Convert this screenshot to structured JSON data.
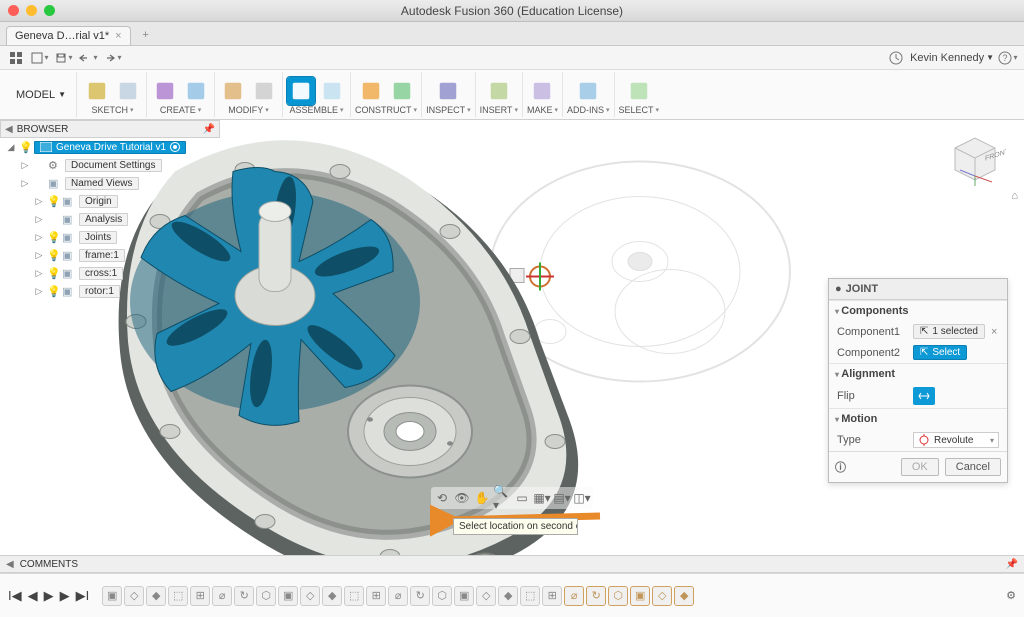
{
  "app_title": "Autodesk Fusion 360 (Education License)",
  "tab": {
    "name": "Geneva D…rial v1*",
    "closable": true
  },
  "user": {
    "name": "Kevin Kennedy"
  },
  "quickbar": {
    "clock_icon": "clock",
    "help_icon": "?"
  },
  "ribbon": {
    "workspace": "MODEL",
    "groups": [
      {
        "label": "SKETCH",
        "icons": [
          {
            "c": "#d8c060"
          },
          {
            "c": "#c2d3e0"
          }
        ]
      },
      {
        "label": "CREATE",
        "icons": [
          {
            "c": "#b58ad1"
          },
          {
            "c": "#9ac6e6"
          }
        ]
      },
      {
        "label": "MODIFY",
        "icons": [
          {
            "c": "#e0b880"
          },
          {
            "c": "#cfcfcf"
          }
        ]
      },
      {
        "label": "ASSEMBLE",
        "icons": [
          {
            "c": "#0896d3",
            "active": true
          },
          {
            "c": "#c4e1f0"
          }
        ]
      },
      {
        "label": "CONSTRUCT",
        "icons": [
          {
            "c": "#f0b05a"
          },
          {
            "c": "#8cd19a"
          }
        ]
      },
      {
        "label": "INSPECT",
        "icons": [
          {
            "c": "#9897cf"
          }
        ]
      },
      {
        "label": "INSERT",
        "icons": [
          {
            "c": "#bcd49a"
          }
        ]
      },
      {
        "label": "MAKE",
        "icons": [
          {
            "c": "#c5b9e0"
          }
        ]
      },
      {
        "label": "ADD-INS",
        "icons": [
          {
            "c": "#9fc9e6"
          }
        ]
      },
      {
        "label": "SELECT",
        "icons": [
          {
            "c": "#b7e0b0"
          }
        ]
      }
    ]
  },
  "browser": {
    "title": "BROWSER",
    "root": "Geneva Drive Tutorial v1",
    "items": [
      {
        "icon": "gear",
        "label": "Document Settings",
        "indent": 1,
        "tw": "▷"
      },
      {
        "icon": "folder",
        "label": "Named Views",
        "indent": 1,
        "tw": "▷"
      },
      {
        "icon": "folder",
        "label": "Origin",
        "indent": 2,
        "tw": "▷",
        "bulb": true
      },
      {
        "icon": "folder",
        "label": "Analysis",
        "indent": 2,
        "tw": "▷"
      },
      {
        "icon": "folder",
        "label": "Joints",
        "indent": 2,
        "tw": "▷",
        "bulb": true
      },
      {
        "icon": "comp",
        "label": "frame:1",
        "indent": 2,
        "tw": "▷",
        "bulb": true
      },
      {
        "icon": "comp",
        "label": "cross:1",
        "indent": 2,
        "tw": "▷",
        "bulb": true
      },
      {
        "icon": "comp",
        "label": "rotor:1",
        "indent": 2,
        "tw": "▷",
        "bulb": true
      }
    ]
  },
  "joint_dialog": {
    "title": "JOINT",
    "sections": {
      "components": "Components",
      "alignment": "Alignment",
      "motion": "Motion"
    },
    "component1_label": "Component1",
    "component1_value": "1 selected",
    "component2_label": "Component2",
    "component2_value": "Select",
    "flip_label": "Flip",
    "type_label": "Type",
    "type_value": "Revolute",
    "ok": "OK",
    "cancel": "Cancel"
  },
  "tooltip": "Select location on second c",
  "comments_label": "COMMENTS",
  "viewcube_face": "FRONT",
  "timeline": {
    "count": 27
  },
  "colors": {
    "blue": "#0d99d6",
    "geneva_blue": "#1f87b0",
    "metal": "#c9ccc8",
    "metal_dark": "#5d6360",
    "arrow": "#e88a2a"
  }
}
